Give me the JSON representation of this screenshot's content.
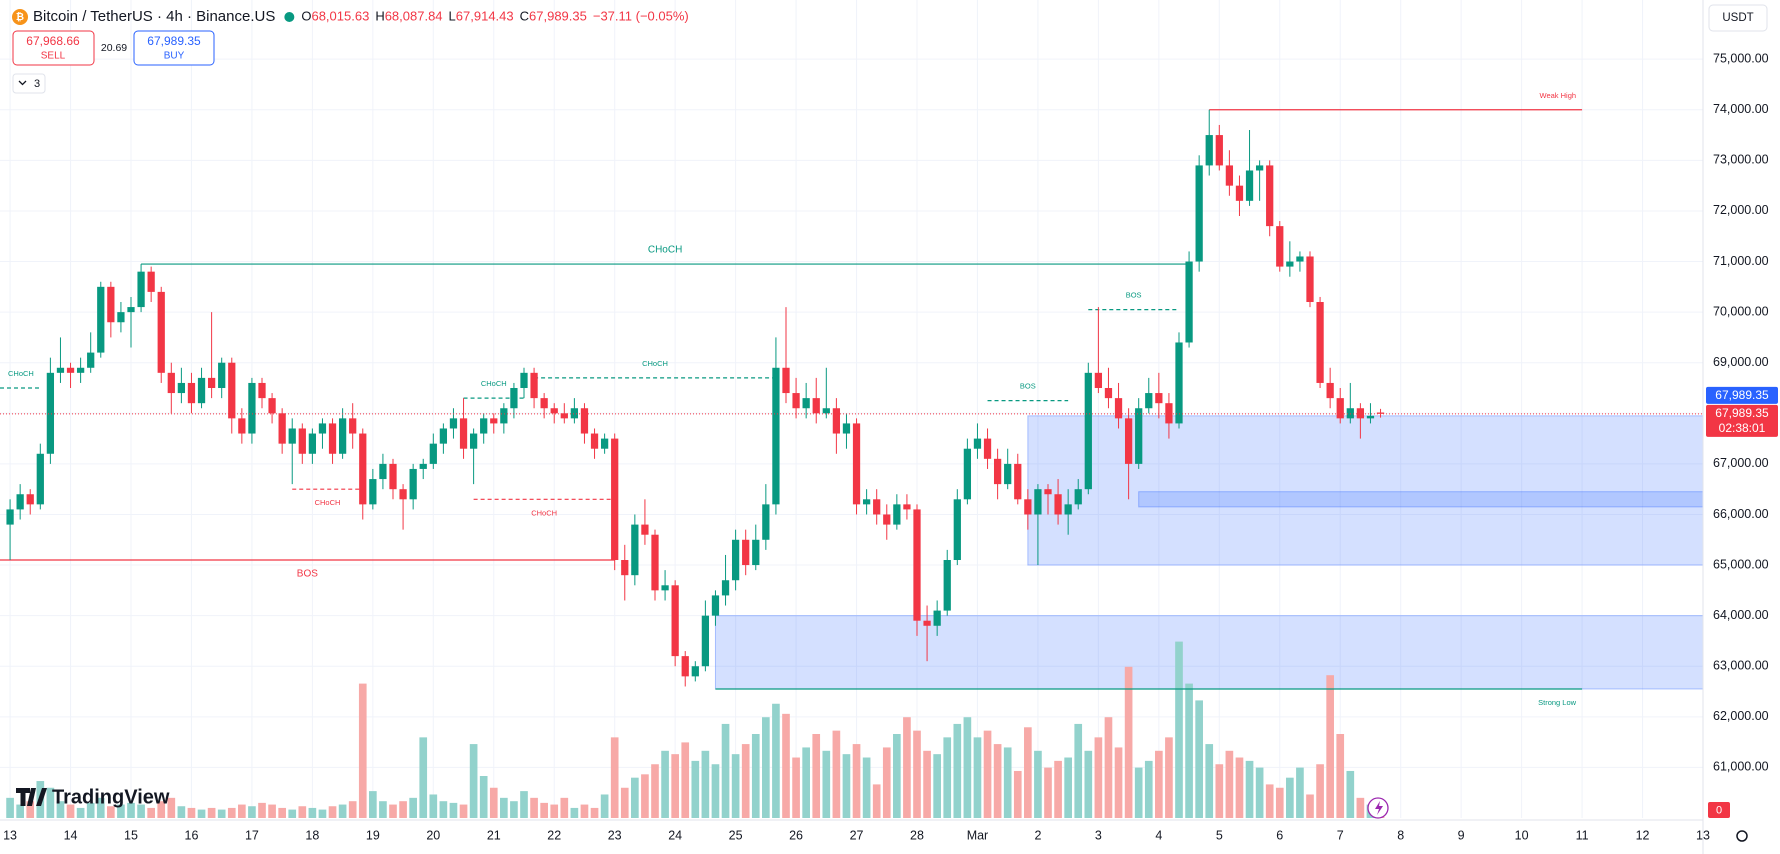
{
  "legend": {
    "symbol": "Bitcoin / TetherUS · 4h · Binance.US",
    "ohlc": [
      {
        "key": "O",
        "value": "68,015.63"
      },
      {
        "key": "H",
        "value": "68,087.84"
      },
      {
        "key": "L",
        "value": "67,914.43"
      },
      {
        "key": "C",
        "value": "67,989.35"
      }
    ],
    "change": "−37.11 (−0.05%)"
  },
  "trade": {
    "sell_price": "67,968.66",
    "sell": "SELL",
    "spread": "20.69",
    "buy_price": "67,989.35",
    "buy": "BUY"
  },
  "indicators_count": "3",
  "currency": "USDT",
  "brand": "TradingView",
  "price_badges": {
    "ask": "67,989.35",
    "last": "67,989.35",
    "countdown": "02:38:01"
  },
  "volume_badge": "0",
  "chart_data": {
    "type": "candlestick",
    "up_color": "#089981",
    "down_color": "#f23645",
    "volume_up_color": "#92d2cc",
    "volume_down_color": "#f7a9a7",
    "zone_color": "#2962ff",
    "grid": true,
    "xlim": [
      -1,
      168
    ],
    "ylim": [
      60000,
      76170
    ],
    "xticks": [
      {
        "value": 0,
        "label": "13"
      },
      {
        "value": 6,
        "label": "14"
      },
      {
        "value": 12,
        "label": "15"
      },
      {
        "value": 18,
        "label": "16"
      },
      {
        "value": 24,
        "label": "17"
      },
      {
        "value": 30,
        "label": "18"
      },
      {
        "value": 36,
        "label": "19"
      },
      {
        "value": 42,
        "label": "20"
      },
      {
        "value": 48,
        "label": "21"
      },
      {
        "value": 54,
        "label": "22"
      },
      {
        "value": 60,
        "label": "23"
      },
      {
        "value": 66,
        "label": "24"
      },
      {
        "value": 72,
        "label": "25"
      },
      {
        "value": 78,
        "label": "26"
      },
      {
        "value": 84,
        "label": "27"
      },
      {
        "value": 90,
        "label": "28"
      },
      {
        "value": 96,
        "label": "Mar"
      },
      {
        "value": 102,
        "label": "2"
      },
      {
        "value": 108,
        "label": "3"
      },
      {
        "value": 114,
        "label": "4"
      },
      {
        "value": 120,
        "label": "5"
      },
      {
        "value": 126,
        "label": "6"
      },
      {
        "value": 132,
        "label": "7"
      },
      {
        "value": 138,
        "label": "8"
      },
      {
        "value": 144,
        "label": "9"
      },
      {
        "value": 150,
        "label": "10"
      },
      {
        "value": 156,
        "label": "11"
      },
      {
        "value": 162,
        "label": "12"
      },
      {
        "value": 168,
        "label": "13"
      }
    ],
    "yticks": [
      {
        "value": 61000,
        "label": "61,000.00"
      },
      {
        "value": 62000,
        "label": "62,000.00"
      },
      {
        "value": 63000,
        "label": "63,000.00"
      },
      {
        "value": 64000,
        "label": "64,000.00"
      },
      {
        "value": 65000,
        "label": "65,000.00"
      },
      {
        "value": 66000,
        "label": "66,000.00"
      },
      {
        "value": 67000,
        "label": "67,000.00"
      },
      {
        "value": 68000,
        "label": "68,000.00"
      },
      {
        "value": 69000,
        "label": "69,000.00"
      },
      {
        "value": 70000,
        "label": "70,000.00"
      },
      {
        "value": 71000,
        "label": "71,000.00"
      },
      {
        "value": 72000,
        "label": "72,000.00"
      },
      {
        "value": 73000,
        "label": "73,000.00"
      },
      {
        "value": 74000,
        "label": "74,000.00"
      },
      {
        "value": 75000,
        "label": "75,000.00"
      }
    ],
    "candles": [
      [
        65800,
        66300,
        65100,
        66100
      ],
      [
        66100,
        66600,
        65900,
        66400
      ],
      [
        66400,
        66500,
        66000,
        66200
      ],
      [
        66200,
        67400,
        66100,
        67200
      ],
      [
        67200,
        69100,
        67000,
        68800
      ],
      [
        68800,
        69500,
        68600,
        68900
      ],
      [
        68900,
        69000,
        68500,
        68800
      ],
      [
        68800,
        69100,
        68600,
        68900
      ],
      [
        68900,
        69600,
        68800,
        69200
      ],
      [
        69200,
        70600,
        69100,
        70500
      ],
      [
        70500,
        70600,
        69500,
        69800
      ],
      [
        69800,
        70200,
        69600,
        70000
      ],
      [
        70000,
        70300,
        69300,
        70100
      ],
      [
        70100,
        70950,
        70000,
        70800
      ],
      [
        70800,
        70900,
        70200,
        70400
      ],
      [
        70400,
        70500,
        68600,
        68800
      ],
      [
        68800,
        69000,
        68000,
        68400
      ],
      [
        68400,
        68900,
        68200,
        68600
      ],
      [
        68600,
        68800,
        68000,
        68200
      ],
      [
        68200,
        68900,
        68100,
        68700
      ],
      [
        68700,
        70000,
        68300,
        68500
      ],
      [
        68500,
        69100,
        68300,
        69000
      ],
      [
        69000,
        69100,
        67600,
        67900
      ],
      [
        67900,
        68100,
        67400,
        67600
      ],
      [
        67600,
        68700,
        67400,
        68600
      ],
      [
        68600,
        68700,
        68100,
        68300
      ],
      [
        68300,
        68400,
        67800,
        68000
      ],
      [
        68000,
        68100,
        67200,
        67400
      ],
      [
        67400,
        67900,
        66600,
        67700
      ],
      [
        67700,
        67800,
        67000,
        67200
      ],
      [
        67200,
        67700,
        67000,
        67600
      ],
      [
        67600,
        67900,
        67300,
        67800
      ],
      [
        67800,
        67900,
        67000,
        67200
      ],
      [
        67200,
        68100,
        67100,
        67900
      ],
      [
        67900,
        68200,
        67300,
        67600
      ],
      [
        67600,
        67700,
        65900,
        66200
      ],
      [
        66200,
        66900,
        66100,
        66700
      ],
      [
        66700,
        67200,
        66500,
        67000
      ],
      [
        67000,
        67100,
        66300,
        66500
      ],
      [
        66500,
        66600,
        65700,
        66300
      ],
      [
        66300,
        67000,
        66100,
        66900
      ],
      [
        66900,
        67100,
        66700,
        67000
      ],
      [
        67000,
        67600,
        66900,
        67400
      ],
      [
        67400,
        67800,
        67200,
        67700
      ],
      [
        67700,
        68100,
        67500,
        67900
      ],
      [
        67900,
        68300,
        67100,
        67300
      ],
      [
        67300,
        67700,
        66600,
        67600
      ],
      [
        67600,
        68000,
        67400,
        67900
      ],
      [
        67900,
        68000,
        67600,
        67800
      ],
      [
        67800,
        68200,
        67600,
        68100
      ],
      [
        68100,
        68600,
        67900,
        68500
      ],
      [
        68500,
        68900,
        68300,
        68800
      ],
      [
        68800,
        68900,
        68100,
        68300
      ],
      [
        68300,
        68400,
        67900,
        68100
      ],
      [
        68100,
        68200,
        67800,
        68000
      ],
      [
        68000,
        68200,
        67800,
        67900
      ],
      [
        67900,
        68300,
        67800,
        68100
      ],
      [
        68100,
        68200,
        67400,
        67600
      ],
      [
        67600,
        67700,
        67100,
        67300
      ],
      [
        67300,
        67600,
        67200,
        67500
      ],
      [
        67500,
        67600,
        64900,
        65100
      ],
      [
        65100,
        65400,
        64300,
        64800
      ],
      [
        64800,
        66000,
        64600,
        65800
      ],
      [
        65800,
        66300,
        65400,
        65600
      ],
      [
        65600,
        65700,
        64300,
        64500
      ],
      [
        64500,
        64900,
        64300,
        64600
      ],
      [
        64600,
        64700,
        63000,
        63200
      ],
      [
        63200,
        63300,
        62600,
        62800
      ],
      [
        62800,
        63100,
        62700,
        63000
      ],
      [
        63000,
        64300,
        62900,
        64000
      ],
      [
        64000,
        64500,
        63800,
        64400
      ],
      [
        64400,
        65200,
        64200,
        64700
      ],
      [
        64700,
        65700,
        64500,
        65500
      ],
      [
        65500,
        65700,
        64800,
        65000
      ],
      [
        65000,
        65800,
        64900,
        65500
      ],
      [
        65500,
        66600,
        65300,
        66200
      ],
      [
        66200,
        69500,
        66000,
        68900
      ],
      [
        68900,
        70100,
        68200,
        68400
      ],
      [
        68400,
        68700,
        67900,
        68100
      ],
      [
        68100,
        68600,
        67900,
        68300
      ],
      [
        68300,
        68700,
        67800,
        68000
      ],
      [
        68000,
        68900,
        67900,
        68100
      ],
      [
        68100,
        68300,
        67200,
        67600
      ],
      [
        67600,
        68000,
        67300,
        67800
      ],
      [
        67800,
        67900,
        66000,
        66200
      ],
      [
        66200,
        66500,
        66000,
        66300
      ],
      [
        66300,
        66500,
        65800,
        66000
      ],
      [
        66000,
        66200,
        65500,
        65800
      ],
      [
        65800,
        66400,
        65700,
        66200
      ],
      [
        66200,
        66400,
        65900,
        66100
      ],
      [
        66100,
        66200,
        63600,
        63900
      ],
      [
        63900,
        64200,
        63100,
        63800
      ],
      [
        63800,
        64300,
        63600,
        64100
      ],
      [
        64100,
        65300,
        64000,
        65100
      ],
      [
        65100,
        66500,
        65000,
        66300
      ],
      [
        66300,
        67500,
        66200,
        67300
      ],
      [
        67300,
        67800,
        67100,
        67500
      ],
      [
        67500,
        67700,
        66900,
        67100
      ],
      [
        67100,
        67300,
        66300,
        66600
      ],
      [
        66600,
        67300,
        66500,
        67000
      ],
      [
        67000,
        67200,
        66200,
        66300
      ],
      [
        66300,
        66500,
        65700,
        66000
      ],
      [
        66000,
        66600,
        65000,
        66500
      ],
      [
        66500,
        66600,
        66000,
        66400
      ],
      [
        66400,
        66700,
        65800,
        66000
      ],
      [
        66000,
        66500,
        65600,
        66200
      ],
      [
        66200,
        66700,
        66100,
        66500
      ],
      [
        66500,
        69000,
        66400,
        68800
      ],
      [
        68800,
        70100,
        68400,
        68500
      ],
      [
        68500,
        68900,
        68100,
        68300
      ],
      [
        68300,
        68600,
        67700,
        67900
      ],
      [
        67900,
        68100,
        66300,
        67000
      ],
      [
        67000,
        68300,
        66900,
        68100
      ],
      [
        68100,
        68700,
        68000,
        68400
      ],
      [
        68400,
        68800,
        67900,
        68200
      ],
      [
        68200,
        68400,
        67500,
        67800
      ],
      [
        67800,
        69600,
        67700,
        69400
      ],
      [
        69400,
        71200,
        69300,
        71000
      ],
      [
        71000,
        73100,
        70800,
        72900
      ],
      [
        72900,
        74000,
        72700,
        73500
      ],
      [
        73500,
        73700,
        72800,
        72900
      ],
      [
        72900,
        73200,
        72300,
        72500
      ],
      [
        72500,
        72700,
        71900,
        72200
      ],
      [
        72200,
        73600,
        72100,
        72800
      ],
      [
        72800,
        73000,
        72200,
        72900
      ],
      [
        72900,
        73000,
        71500,
        71700
      ],
      [
        71700,
        71800,
        70800,
        70900
      ],
      [
        70900,
        71400,
        70700,
        71000
      ],
      [
        71000,
        71200,
        70800,
        71100
      ],
      [
        71100,
        71200,
        70100,
        70200
      ],
      [
        70200,
        70300,
        68500,
        68600
      ],
      [
        68600,
        68900,
        68100,
        68300
      ],
      [
        68300,
        68500,
        67800,
        67900
      ],
      [
        67900,
        68600,
        67800,
        68100
      ],
      [
        68100,
        68200,
        67500,
        67900
      ],
      [
        67900,
        68200,
        67800,
        67950
      ],
      [
        68015.63,
        68087.84,
        67914.43,
        67989.35
      ]
    ],
    "volume": [
      12,
      8,
      10,
      22,
      18,
      10,
      8,
      6,
      9,
      12,
      7,
      8,
      9,
      8,
      6,
      10,
      12,
      7,
      6,
      5,
      6,
      5,
      6,
      8,
      7,
      9,
      8,
      6,
      5,
      7,
      6,
      5,
      7,
      8,
      10,
      80,
      16,
      10,
      8,
      10,
      12,
      48,
      14,
      10,
      9,
      8,
      44,
      25,
      18,
      12,
      10,
      16,
      12,
      9,
      8,
      12,
      6,
      8,
      6,
      14,
      48,
      18,
      24,
      26,
      32,
      40,
      38,
      45,
      34,
      40,
      32,
      56,
      38,
      44,
      50,
      60,
      68,
      62,
      36,
      42,
      50,
      40,
      52,
      38,
      44,
      36,
      20,
      42,
      50,
      60,
      52,
      40,
      38,
      48,
      56,
      60,
      48,
      52,
      44,
      42,
      28,
      54,
      40,
      30,
      34,
      36,
      56,
      40,
      48,
      60,
      42,
      90,
      30,
      34,
      40,
      48,
      105,
      80,
      70,
      44,
      32,
      40,
      36,
      34,
      30,
      20,
      18,
      24,
      30,
      14,
      32,
      85,
      50,
      28,
      12,
      8,
      4
    ],
    "structures": [
      {
        "label": "CHoCH",
        "price": 68500,
        "start": -1,
        "end": 3,
        "color": "#089981",
        "style": "dashed",
        "label_align": "start",
        "label_side": "above"
      },
      {
        "label": "CHoCH",
        "price": 70950,
        "start": 13,
        "end": 117,
        "color": "#089981",
        "style": "solid",
        "label_align": "middle",
        "label_side": "above"
      },
      {
        "label": "BOS",
        "price": 65100,
        "start": -1,
        "end": 60,
        "color": "#f23645",
        "style": "solid",
        "label_align": "middle",
        "label_side": "below"
      },
      {
        "label": "CHoCH",
        "price": 66500,
        "start": 28,
        "end": 35,
        "color": "#f23645",
        "style": "dashed",
        "label_align": "middle",
        "label_side": "below"
      },
      {
        "label": "CHoCH",
        "price": 68300,
        "start": 45,
        "end": 51,
        "color": "#089981",
        "style": "dashed",
        "label_align": "middle",
        "label_side": "above"
      },
      {
        "label": "CHoCH",
        "price": 66300,
        "start": 46,
        "end": 60,
        "color": "#f23645",
        "style": "dashed",
        "label_align": "middle",
        "label_side": "below"
      },
      {
        "label": "CHoCH",
        "price": 68700,
        "start": 52,
        "end": 76,
        "color": "#089981",
        "style": "dashed",
        "label_align": "middle",
        "label_side": "above"
      },
      {
        "label": "BOS",
        "price": 68250,
        "start": 97,
        "end": 105,
        "color": "#089981",
        "style": "dashed",
        "label_align": "middle",
        "label_side": "above"
      },
      {
        "label": "BOS",
        "price": 70050,
        "start": 107,
        "end": 116,
        "color": "#089981",
        "style": "dashed",
        "label_align": "middle",
        "label_side": "above"
      },
      {
        "label": "Weak High",
        "price": 74000,
        "start": 119,
        "end": 156,
        "color": "#f23645",
        "style": "solid",
        "label_align": "end",
        "label_side": "above"
      },
      {
        "label": "Strong Low",
        "price": 62550,
        "start": 70,
        "end": 156,
        "color": "#089981",
        "style": "solid",
        "label_align": "end",
        "label_side": "below"
      }
    ],
    "zones": [
      {
        "top": 64000,
        "bottom": 62550,
        "start": 70
      },
      {
        "top": 67950,
        "bottom": 65000,
        "start": 101
      },
      {
        "top": 66450,
        "bottom": 66150,
        "start": 112
      }
    ]
  }
}
